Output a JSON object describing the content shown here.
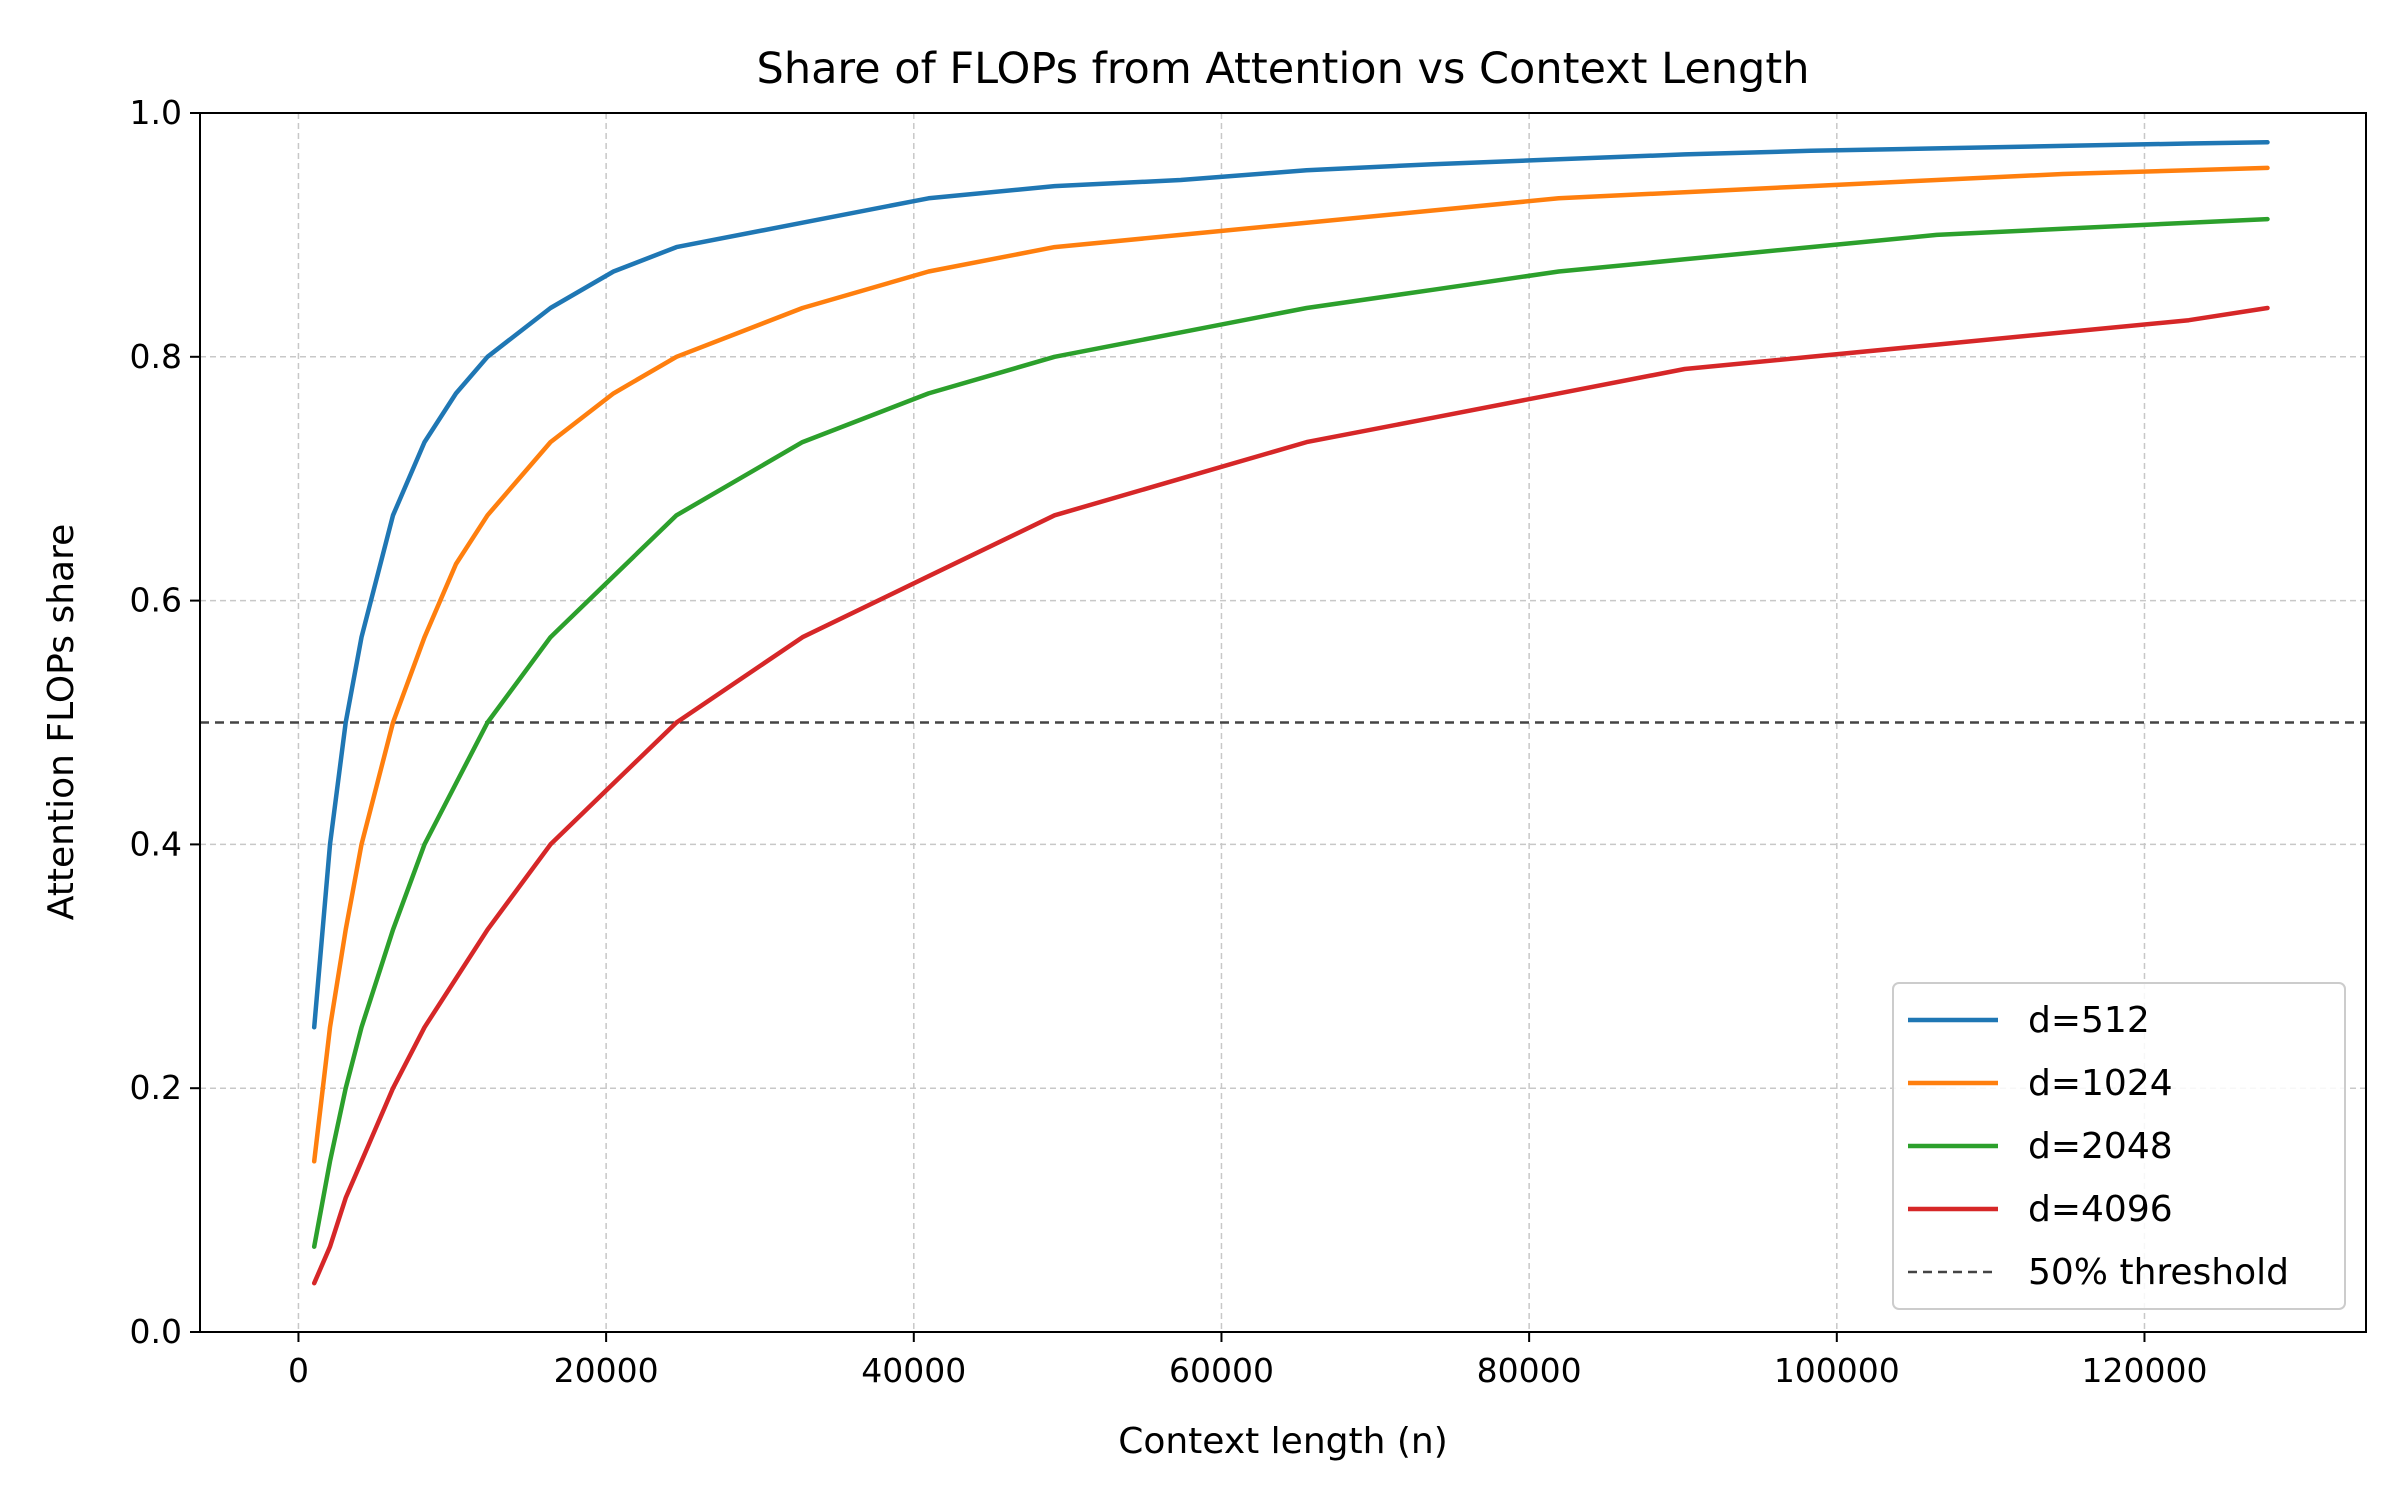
{
  "chart_data": {
    "type": "line",
    "title": "Share of FLOPs from Attention vs Context Length",
    "xlabel": "Context length (n)",
    "ylabel": "Attention FLOPs share",
    "xlim": [
      -6400,
      134400
    ],
    "ylim": [
      0.0,
      1.0
    ],
    "xticks": [
      0,
      20000,
      40000,
      60000,
      80000,
      100000,
      120000
    ],
    "yticks": [
      0.0,
      0.2,
      0.4,
      0.6,
      0.8,
      1.0
    ],
    "xtick_labels": [
      "0",
      "20000",
      "40000",
      "60000",
      "80000",
      "100000",
      "120000"
    ],
    "ytick_labels": [
      "0.0",
      "0.2",
      "0.4",
      "0.6",
      "0.8",
      "1.0"
    ],
    "grid": true,
    "legend_position": "lower-right",
    "x": [
      1024,
      2048,
      3072,
      4096,
      6144,
      8192,
      10240,
      12288,
      16384,
      20480,
      24576,
      32768,
      40960,
      49152,
      57344,
      65536,
      73728,
      81920,
      90112,
      98304,
      106496,
      114688,
      122880,
      128000
    ],
    "series": [
      {
        "name": "d=512",
        "color": "#1f77b4",
        "values": [
          0.25,
          0.4,
          0.5,
          0.57,
          0.67,
          0.73,
          0.77,
          0.8,
          0.84,
          0.87,
          0.89,
          0.91,
          0.93,
          0.94,
          0.945,
          0.953,
          0.958,
          0.962,
          0.966,
          0.969,
          0.971,
          0.973,
          0.975,
          0.976
        ]
      },
      {
        "name": "d=1024",
        "color": "#ff7f0e",
        "values": [
          0.14,
          0.25,
          0.33,
          0.4,
          0.5,
          0.57,
          0.63,
          0.67,
          0.73,
          0.77,
          0.8,
          0.84,
          0.87,
          0.89,
          0.9,
          0.91,
          0.92,
          0.93,
          0.935,
          0.94,
          0.945,
          0.95,
          0.953,
          0.955
        ]
      },
      {
        "name": "d=2048",
        "color": "#2ca02c",
        "values": [
          0.07,
          0.14,
          0.2,
          0.25,
          0.33,
          0.4,
          0.45,
          0.5,
          0.57,
          0.62,
          0.67,
          0.73,
          0.77,
          0.8,
          0.82,
          0.84,
          0.855,
          0.87,
          0.88,
          0.89,
          0.9,
          0.905,
          0.91,
          0.913
        ]
      },
      {
        "name": "d=4096",
        "color": "#d62728",
        "values": [
          0.04,
          0.07,
          0.11,
          0.14,
          0.2,
          0.25,
          0.29,
          0.33,
          0.4,
          0.45,
          0.5,
          0.57,
          0.62,
          0.67,
          0.7,
          0.73,
          0.75,
          0.77,
          0.79,
          0.8,
          0.81,
          0.82,
          0.83,
          0.84
        ]
      }
    ],
    "reference_lines": [
      {
        "name": "50% threshold",
        "y": 0.5,
        "color": "#444444",
        "style": "dashed"
      }
    ]
  }
}
